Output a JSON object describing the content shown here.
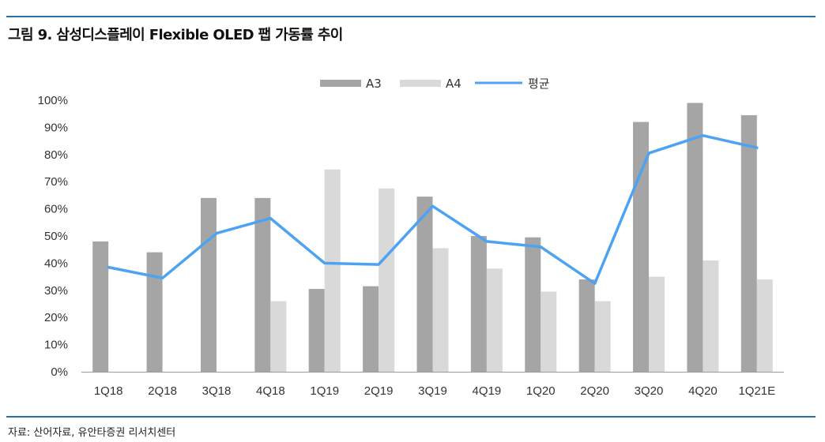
{
  "title": "그림 9. 삼성디스플레이 Flexible OLED 팹 가동률 추이",
  "source": "자료: 산어자료, 유안타증권 리서치센터",
  "chart_data": {
    "type": "bar",
    "title": "그림 9. 삼성디스플레이 Flexible OLED 팹 가동률 추이",
    "categories": [
      "1Q18",
      "2Q18",
      "3Q18",
      "4Q18",
      "1Q19",
      "2Q19",
      "3Q19",
      "4Q19",
      "1Q20",
      "2Q20",
      "3Q20",
      "4Q20",
      "1Q21E"
    ],
    "series": [
      {
        "name": "A3",
        "kind": "bar",
        "color": "#a5a5a5",
        "values": [
          48,
          44,
          64,
          64,
          30.5,
          31.5,
          64.5,
          50,
          49.5,
          34,
          92,
          99,
          94.5
        ]
      },
      {
        "name": "A4",
        "kind": "bar",
        "color": "#d9d9d9",
        "values": [
          null,
          null,
          null,
          26,
          74.5,
          67.5,
          45.5,
          38,
          29.5,
          26,
          35,
          41,
          34
        ]
      },
      {
        "name": "평균",
        "kind": "line",
        "color": "#4da3f2",
        "values": [
          38.5,
          34.5,
          51,
          56.5,
          40,
          39.5,
          61,
          48,
          46,
          32.5,
          80.5,
          87,
          82.5
        ]
      }
    ],
    "ylim": [
      0,
      100
    ],
    "yticks": [
      0,
      10,
      20,
      30,
      40,
      50,
      60,
      70,
      80,
      90,
      100
    ],
    "ytick_labels": [
      "0%",
      "10%",
      "20%",
      "30%",
      "40%",
      "50%",
      "60%",
      "70%",
      "80%",
      "90%",
      "100%"
    ],
    "xlabel": "",
    "ylabel": "",
    "legend_position": "top-center",
    "grid": false
  }
}
